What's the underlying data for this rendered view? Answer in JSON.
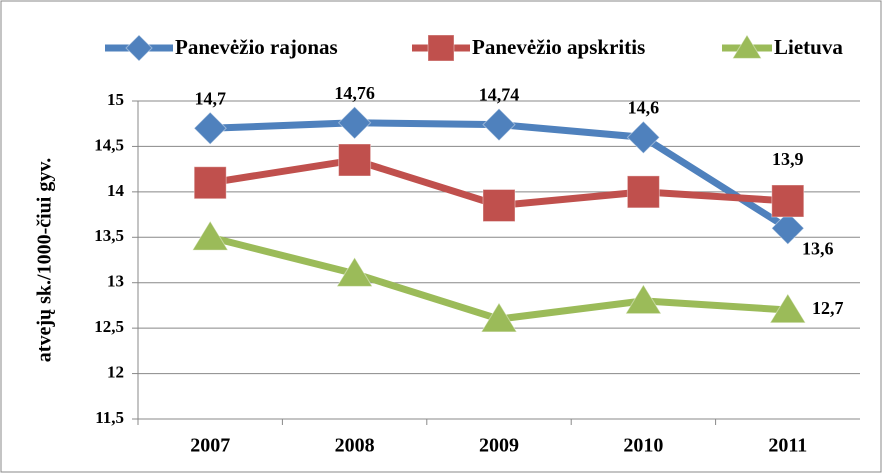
{
  "chart_data": {
    "type": "line",
    "categories": [
      "2007",
      "2008",
      "2009",
      "2010",
      "2011"
    ],
    "y_label": "atvejų sk./1000-čiui gyv.",
    "series": [
      {
        "name": "Panevėžio rajonas",
        "color": "#4f81bd",
        "marker": "diamond",
        "values": [
          14.7,
          14.76,
          14.74,
          14.6,
          13.6
        ],
        "value_labels": [
          "14,7",
          "14,76",
          "14,74",
          "14,6",
          "13,6"
        ]
      },
      {
        "name": "Panevėžio apskritis",
        "color": "#c0504d",
        "marker": "square",
        "values": [
          14.1,
          14.35,
          13.85,
          14.0,
          13.9
        ],
        "value_labels": [
          null,
          null,
          null,
          null,
          "13,9"
        ]
      },
      {
        "name": "Lietuva",
        "color": "#9bbb59",
        "marker": "triangle",
        "values": [
          13.5,
          13.1,
          12.6,
          12.8,
          12.7
        ],
        "value_labels": [
          null,
          null,
          null,
          null,
          "12,7"
        ]
      }
    ],
    "ylim": [
      11.5,
      15
    ],
    "yticks": [
      {
        "value": 11.5,
        "label": "11,5"
      },
      12,
      {
        "value": 12.5,
        "label": "12,5"
      },
      13,
      {
        "value": 13.5,
        "label": "13,5"
      },
      14,
      {
        "value": 14.5,
        "label": "14,5"
      },
      15
    ],
    "grid": true,
    "legend": "top"
  }
}
